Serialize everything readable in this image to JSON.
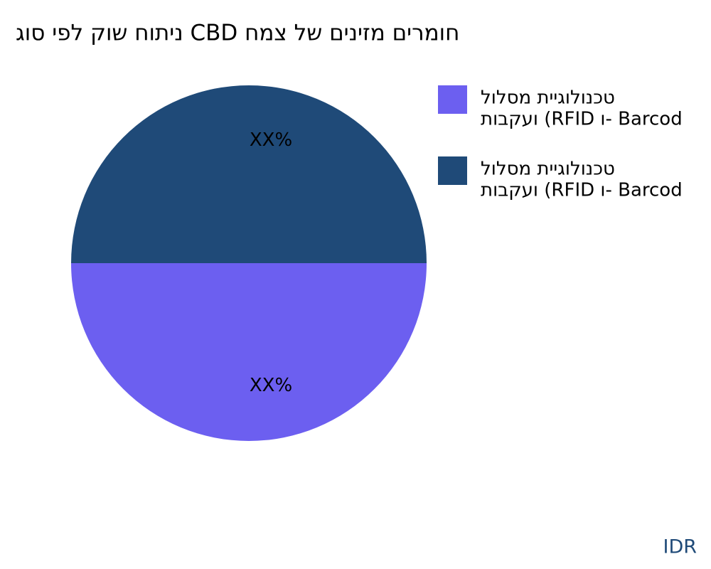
{
  "chart_data": {
    "type": "pie",
    "title": "גוס יפל קוש חותינ CBD חמצ לש םיניזמ םירמוח",
    "categories": [
      [
        "לולסמ תייגולונכט",
        "תובקעו (RFID ו- Barcod"
      ],
      [
        "לולסמ תייגולונכט",
        "תובקעו (RFID ו- Barcod"
      ]
    ],
    "values": [
      50,
      50
    ],
    "value_labels": [
      "XX%",
      "XX%"
    ],
    "colors": [
      "#6c5ff0",
      "#1f4a78"
    ],
    "legend": "right",
    "footer": "IDR"
  }
}
